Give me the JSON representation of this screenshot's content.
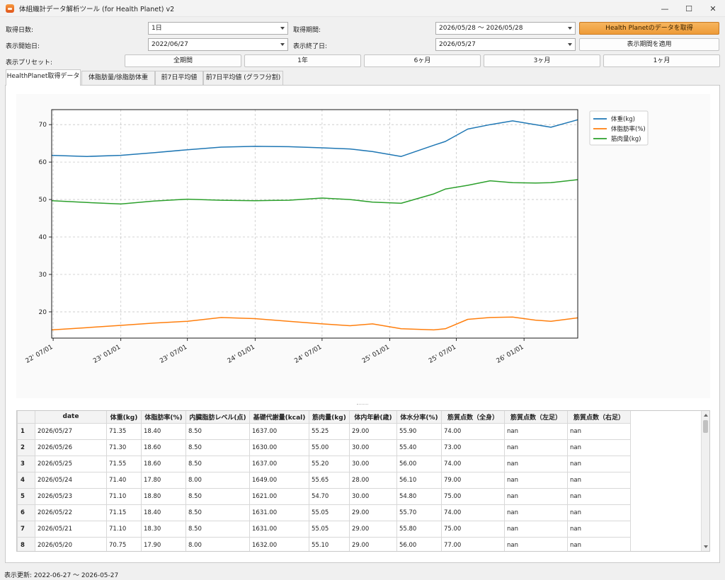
{
  "window": {
    "title": "体組織計データ解析ツール (for Health Planet) v2",
    "minimize": "—",
    "maximize": "☐",
    "close": "✕"
  },
  "controls": {
    "days_label": "取得日数:",
    "days_value": "1日",
    "period_label": "取得期間:",
    "period_value": "2026/05/28 〜 2026/05/28",
    "fetch_button": "Health Planetのデータを取得",
    "start_label": "表示開始日:",
    "start_value": "2022/06/27",
    "end_label": "表示終了日:",
    "end_value": "2026/05/27",
    "apply_button": "表示期間を適用",
    "preset_label": "表示プリセット:",
    "presets": [
      "全期間",
      "1年",
      "6ヶ月",
      "3ヶ月",
      "1ヶ月"
    ]
  },
  "tabs": [
    "HealthPlanet取得データ",
    "体脂肪量/徐脂肪体重",
    "前7日平均値",
    "前7日平均値 (グラフ分割)"
  ],
  "colors": {
    "weight": "#1f77b4",
    "fat": "#ff7f0e",
    "muscle": "#2ca02c",
    "accent": "#ee9b38"
  },
  "chart_data": {
    "type": "line",
    "x_axis": "date",
    "xlim": [
      "2022-06-27",
      "2026-05-27"
    ],
    "ylim": [
      13,
      74
    ],
    "yticks": [
      20,
      30,
      40,
      50,
      60,
      70
    ],
    "xtick_labels": [
      "22' 07/01",
      "23' 01/01",
      "23' 07/01",
      "24' 01/01",
      "24' 07/01",
      "25' 01/01",
      "25' 07/01",
      "26' 01/01"
    ],
    "xtick_dates": [
      "2022-07-01",
      "2023-01-01",
      "2023-07-01",
      "2024-01-01",
      "2024-07-01",
      "2025-01-01",
      "2025-07-01",
      "2026-01-01"
    ],
    "grid": true,
    "legend_position": "outside-top-right",
    "series": [
      {
        "name": "体重(kg)",
        "color": "#1f77b4",
        "x": [
          "2022-06-27",
          "2022-10-01",
          "2023-01-01",
          "2023-04-01",
          "2023-07-01",
          "2023-10-01",
          "2024-01-01",
          "2024-04-01",
          "2024-07-01",
          "2024-09-15",
          "2024-11-15",
          "2025-02-01",
          "2025-05-01",
          "2025-06-01",
          "2025-08-01",
          "2025-10-01",
          "2025-12-01",
          "2026-02-01",
          "2026-03-15",
          "2026-05-27"
        ],
        "values": [
          61.8,
          61.5,
          61.8,
          62.5,
          63.3,
          64.0,
          64.2,
          64.1,
          63.8,
          63.5,
          62.8,
          61.5,
          64.5,
          65.5,
          68.8,
          70.0,
          71.0,
          70.0,
          69.3,
          71.3
        ]
      },
      {
        "name": "体脂肪率(%)",
        "color": "#ff7f0e",
        "x": [
          "2022-06-27",
          "2022-10-01",
          "2023-01-01",
          "2023-04-01",
          "2023-07-01",
          "2023-10-01",
          "2024-01-01",
          "2024-04-01",
          "2024-07-01",
          "2024-09-15",
          "2024-11-15",
          "2025-02-01",
          "2025-05-01",
          "2025-06-01",
          "2025-08-01",
          "2025-10-01",
          "2025-12-01",
          "2026-02-01",
          "2026-03-15",
          "2026-05-27"
        ],
        "values": [
          15.2,
          15.8,
          16.4,
          17.0,
          17.5,
          18.5,
          18.2,
          17.5,
          16.8,
          16.3,
          16.8,
          15.5,
          15.2,
          15.5,
          18.0,
          18.5,
          18.6,
          17.8,
          17.5,
          18.4
        ]
      },
      {
        "name": "筋肉量(kg)",
        "color": "#2ca02c",
        "x": [
          "2022-06-27",
          "2022-10-01",
          "2023-01-01",
          "2023-04-01",
          "2023-07-01",
          "2023-10-01",
          "2024-01-01",
          "2024-04-01",
          "2024-07-01",
          "2024-09-15",
          "2024-11-15",
          "2025-02-01",
          "2025-05-01",
          "2025-06-01",
          "2025-08-01",
          "2025-10-01",
          "2025-12-01",
          "2026-02-01",
          "2026-03-15",
          "2026-05-27"
        ],
        "values": [
          49.7,
          49.2,
          48.8,
          49.6,
          50.1,
          49.8,
          49.7,
          49.8,
          50.4,
          50.0,
          49.3,
          49.0,
          51.5,
          52.8,
          53.8,
          55.0,
          54.5,
          54.4,
          54.5,
          55.3
        ]
      }
    ]
  },
  "table": {
    "headers": [
      "",
      "date",
      "体重(kg)",
      "体脂肪率(%)",
      "内臓脂肪レベル(点)",
      "基礎代謝量(kcal)",
      "筋肉量(kg)",
      "体内年齢(歳)",
      "体水分率(%)",
      "筋質点数（全身）",
      "筋質点数（左足）",
      "筋質点数（右足）"
    ],
    "rows": [
      [
        "1",
        "2026/05/27",
        "71.35",
        "18.40",
        "8.50",
        "1637.00",
        "55.25",
        "29.00",
        "55.90",
        "74.00",
        "nan",
        "nan"
      ],
      [
        "2",
        "2026/05/26",
        "71.30",
        "18.60",
        "8.50",
        "1630.00",
        "55.00",
        "30.00",
        "55.40",
        "73.00",
        "nan",
        "nan"
      ],
      [
        "3",
        "2026/05/25",
        "71.55",
        "18.60",
        "8.50",
        "1637.00",
        "55.20",
        "30.00",
        "56.00",
        "74.00",
        "nan",
        "nan"
      ],
      [
        "4",
        "2026/05/24",
        "71.40",
        "17.80",
        "8.00",
        "1649.00",
        "55.65",
        "28.00",
        "56.10",
        "79.00",
        "nan",
        "nan"
      ],
      [
        "5",
        "2026/05/23",
        "71.10",
        "18.80",
        "8.50",
        "1621.00",
        "54.70",
        "30.00",
        "54.80",
        "75.00",
        "nan",
        "nan"
      ],
      [
        "6",
        "2026/05/22",
        "71.15",
        "18.40",
        "8.50",
        "1631.00",
        "55.05",
        "29.00",
        "55.70",
        "74.00",
        "nan",
        "nan"
      ],
      [
        "7",
        "2026/05/21",
        "71.10",
        "18.30",
        "8.50",
        "1631.00",
        "55.05",
        "29.00",
        "55.80",
        "75.00",
        "nan",
        "nan"
      ],
      [
        "8",
        "2026/05/20",
        "70.75",
        "17.90",
        "8.00",
        "1632.00",
        "55.10",
        "29.00",
        "56.00",
        "77.00",
        "nan",
        "nan"
      ]
    ]
  },
  "status": "表示更新: 2022-06-27 〜 2026-05-27"
}
